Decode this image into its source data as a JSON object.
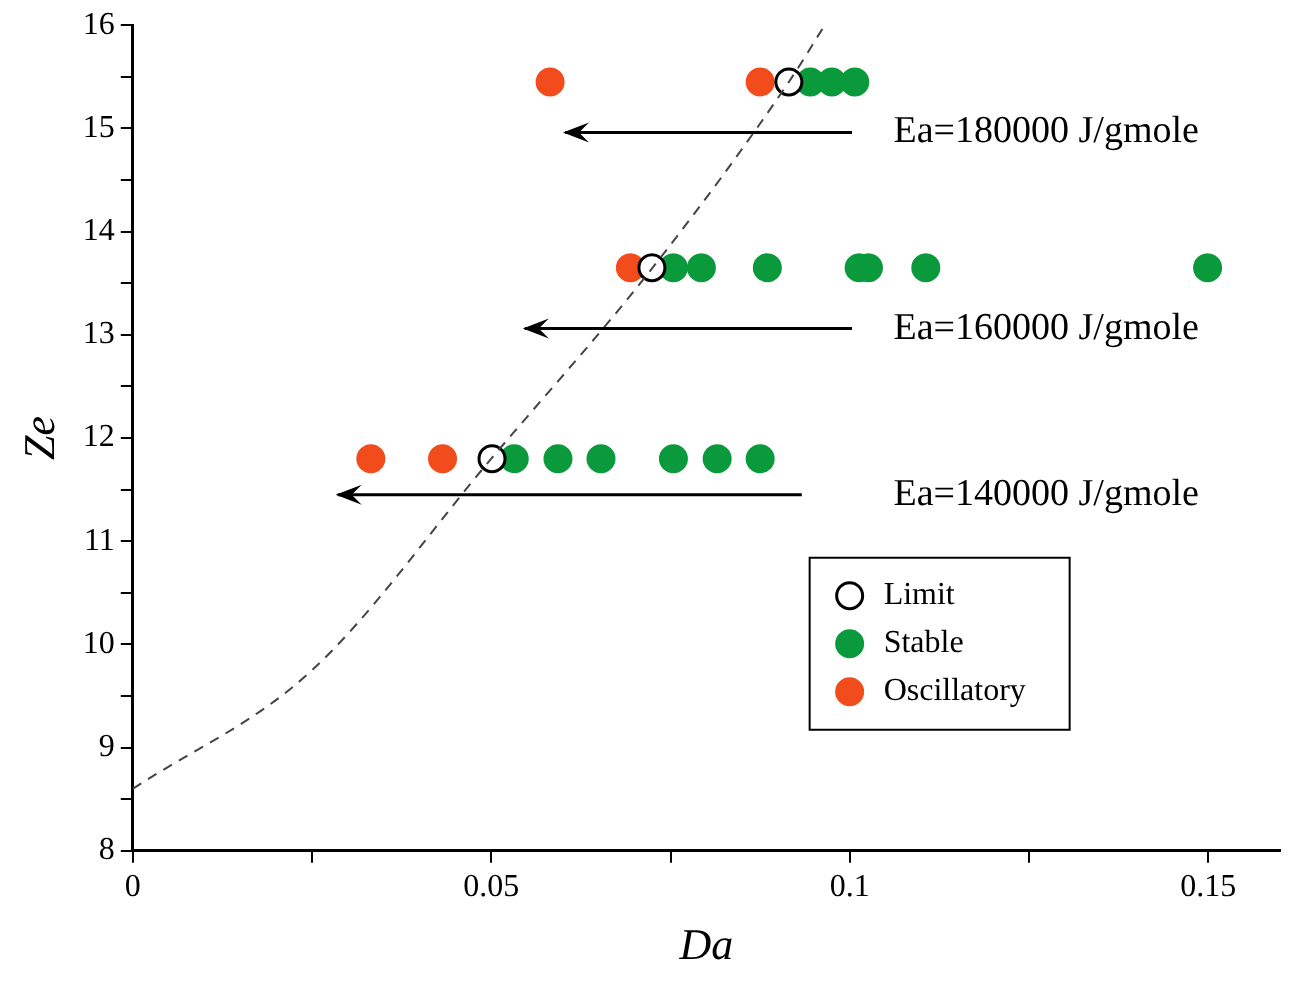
{
  "chart_data": {
    "type": "scatter",
    "xlabel": "Da",
    "ylabel": "Ze",
    "xlim": [
      0,
      0.16
    ],
    "ylim": [
      8,
      16
    ],
    "xticks": [
      0,
      {
        "value": 0.025,
        "label": null
      },
      {
        "value": 0.05,
        "label": "0.05"
      },
      {
        "value": 0.075,
        "label": null
      },
      {
        "value": 0.1,
        "label": "0.1"
      },
      {
        "value": 0.125,
        "label": null
      },
      {
        "value": 0.15,
        "label": "0.15"
      }
    ],
    "yticks": [
      8,
      {
        "value": 8.5,
        "label": null
      },
      9,
      {
        "value": 9.5,
        "label": null
      },
      10,
      {
        "value": 10.5,
        "label": null
      },
      11,
      {
        "value": 11.5,
        "label": null
      },
      12,
      {
        "value": 12.5,
        "label": null
      },
      13,
      {
        "value": 13.5,
        "label": null
      },
      14,
      {
        "value": 14.5,
        "label": null
      },
      15,
      {
        "value": 15.5,
        "label": null
      },
      16
    ],
    "grid": false,
    "legend": "bottom right",
    "marker": "circle",
    "series": [
      {
        "type": "line",
        "color": "#444444",
        "line_style": "dashed",
        "marker": "none",
        "x": [
          0,
          0.025,
          0.05,
          0.0725,
          0.0915,
          0.0965
        ],
        "values": [
          8.6,
          9.75,
          11.8,
          13.65,
          15.45,
          16
        ]
      },
      {
        "name": "Limit",
        "color": "#000000",
        "x": [
          0.0915,
          0.0724,
          0.0501
        ],
        "values": [
          15.45,
          13.65,
          11.8
        ]
      },
      {
        "name": "Stable",
        "color": "#0a9a3c",
        "x": [
          0.0945,
          0.0975,
          0.1007,
          0.0754,
          0.0793,
          0.0885,
          0.1013,
          0.1026,
          0.1106,
          0.1499,
          0.0532,
          0.0593,
          0.0653,
          0.0754,
          0.0815,
          0.0875
        ],
        "values": [
          15.45,
          15.45,
          15.45,
          13.65,
          13.65,
          13.65,
          13.65,
          13.65,
          13.65,
          13.65,
          11.8,
          11.8,
          11.8,
          11.8,
          11.8,
          11.8
        ]
      },
      {
        "name": "Oscillatory",
        "color": "#f24c1c",
        "x": [
          0.0582,
          0.0875,
          0.0694,
          0.0332,
          0.0432
        ],
        "values": [
          15.45,
          15.45,
          13.65,
          11.8,
          11.8
        ]
      }
    ],
    "annotations": [
      "Ea=180000 J/gmole",
      "Ea=160000 J/gmole",
      "Ea=140000 J/gmole"
    ]
  }
}
